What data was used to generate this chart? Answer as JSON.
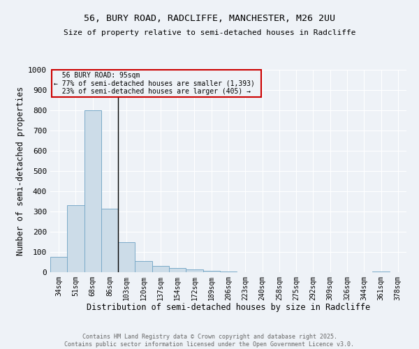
{
  "title_line1": "56, BURY ROAD, RADCLIFFE, MANCHESTER, M26 2UU",
  "title_line2": "Size of property relative to semi-detached houses in Radcliffe",
  "xlabel": "Distribution of semi-detached houses by size in Radcliffe",
  "ylabel": "Number of semi-detached properties",
  "categories": [
    "34sqm",
    "51sqm",
    "68sqm",
    "86sqm",
    "103sqm",
    "120sqm",
    "137sqm",
    "154sqm",
    "172sqm",
    "189sqm",
    "206sqm",
    "223sqm",
    "240sqm",
    "258sqm",
    "275sqm",
    "292sqm",
    "309sqm",
    "326sqm",
    "344sqm",
    "361sqm",
    "378sqm"
  ],
  "values": [
    75,
    330,
    800,
    315,
    150,
    55,
    30,
    22,
    15,
    8,
    5,
    0,
    0,
    0,
    0,
    0,
    0,
    0,
    0,
    5,
    0
  ],
  "bar_color": "#ccdce8",
  "bar_edge_color": "#7aaac8",
  "subject_label": "56 BURY ROAD: 95sqm",
  "annotation_line1": "← 77% of semi-detached houses are smaller (1,393)",
  "annotation_line2": "23% of semi-detached houses are larger (405) →",
  "ylim": [
    0,
    1000
  ],
  "yticks": [
    0,
    100,
    200,
    300,
    400,
    500,
    600,
    700,
    800,
    900,
    1000
  ],
  "footer_line1": "Contains HM Land Registry data © Crown copyright and database right 2025.",
  "footer_line2": "Contains public sector information licensed under the Open Government Licence v3.0.",
  "background_color": "#eef2f7",
  "grid_color": "#ffffff",
  "annotation_box_color": "#cc0000"
}
